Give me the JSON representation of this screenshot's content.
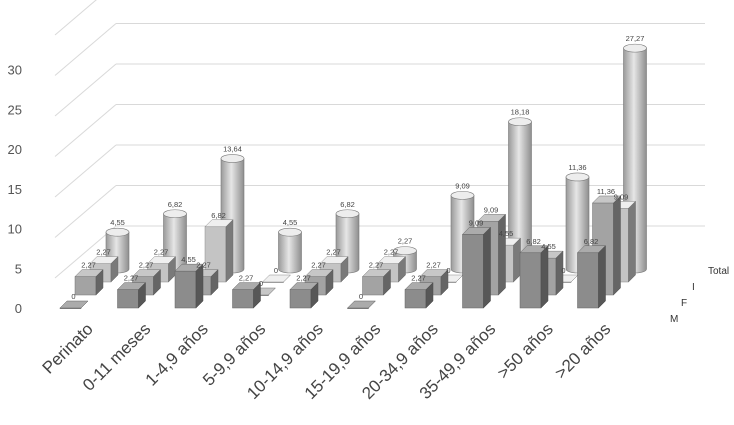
{
  "chart_data": {
    "type": "bar",
    "style": "3d-clustered-depth",
    "title": "",
    "xlabel": "",
    "ylabel": "",
    "ylim": [
      0,
      35
    ],
    "yticks": [
      "0",
      "5",
      "10",
      "15",
      "20",
      "25",
      "30"
    ],
    "grid": true,
    "categories": [
      "Perinato",
      "0-11 meses",
      "1-4,9 años",
      "5-9,9 años",
      "10-14,9 años",
      "15-19,9 años",
      "20-34,9 años",
      "35-49,9 años",
      ">50 años",
      ">20 años"
    ],
    "series": [
      {
        "name": "M",
        "shape": "box",
        "color": "#8c8c8c",
        "values": [
          0,
          2.27,
          4.55,
          2.27,
          2.27,
          0,
          2.27,
          9.09,
          6.82,
          6.82
        ],
        "labels": [
          "0",
          "2,27",
          "4,55",
          "2,27",
          "2,27",
          "0",
          "2,27",
          "9,09",
          "6,82",
          "6,82"
        ]
      },
      {
        "name": "F",
        "shape": "box",
        "color": "#a3a3a3",
        "values": [
          2.27,
          2.27,
          2.27,
          0,
          2.27,
          2.27,
          2.27,
          9.09,
          4.55,
          11.36
        ],
        "labels": [
          "2,27",
          "2,27",
          "2,27",
          "0",
          "2,27",
          "2,27",
          "2,27",
          "9,09",
          "4,55",
          "11,36"
        ]
      },
      {
        "name": "I",
        "shape": "box",
        "color": "#c4c4c4",
        "values": [
          2.27,
          2.27,
          6.82,
          0,
          2.27,
          2.27,
          0,
          4.55,
          0,
          9.09
        ],
        "labels": [
          "2,27",
          "2,27",
          "6,82",
          "0",
          "2,27",
          "2,27",
          "0",
          "4,55",
          "0",
          "9,09"
        ]
      },
      {
        "name": "Total",
        "shape": "cylinder",
        "color": "#c9c9c9",
        "values": [
          4.55,
          6.82,
          13.64,
          4.55,
          6.82,
          2.27,
          9.09,
          18.18,
          11.36,
          27.27
        ],
        "labels": [
          "4,55",
          "6,82",
          "13,64",
          "4,55",
          "6,82",
          "2,27",
          "9,09",
          "18,18",
          "11,36",
          "27,27"
        ]
      }
    ]
  }
}
